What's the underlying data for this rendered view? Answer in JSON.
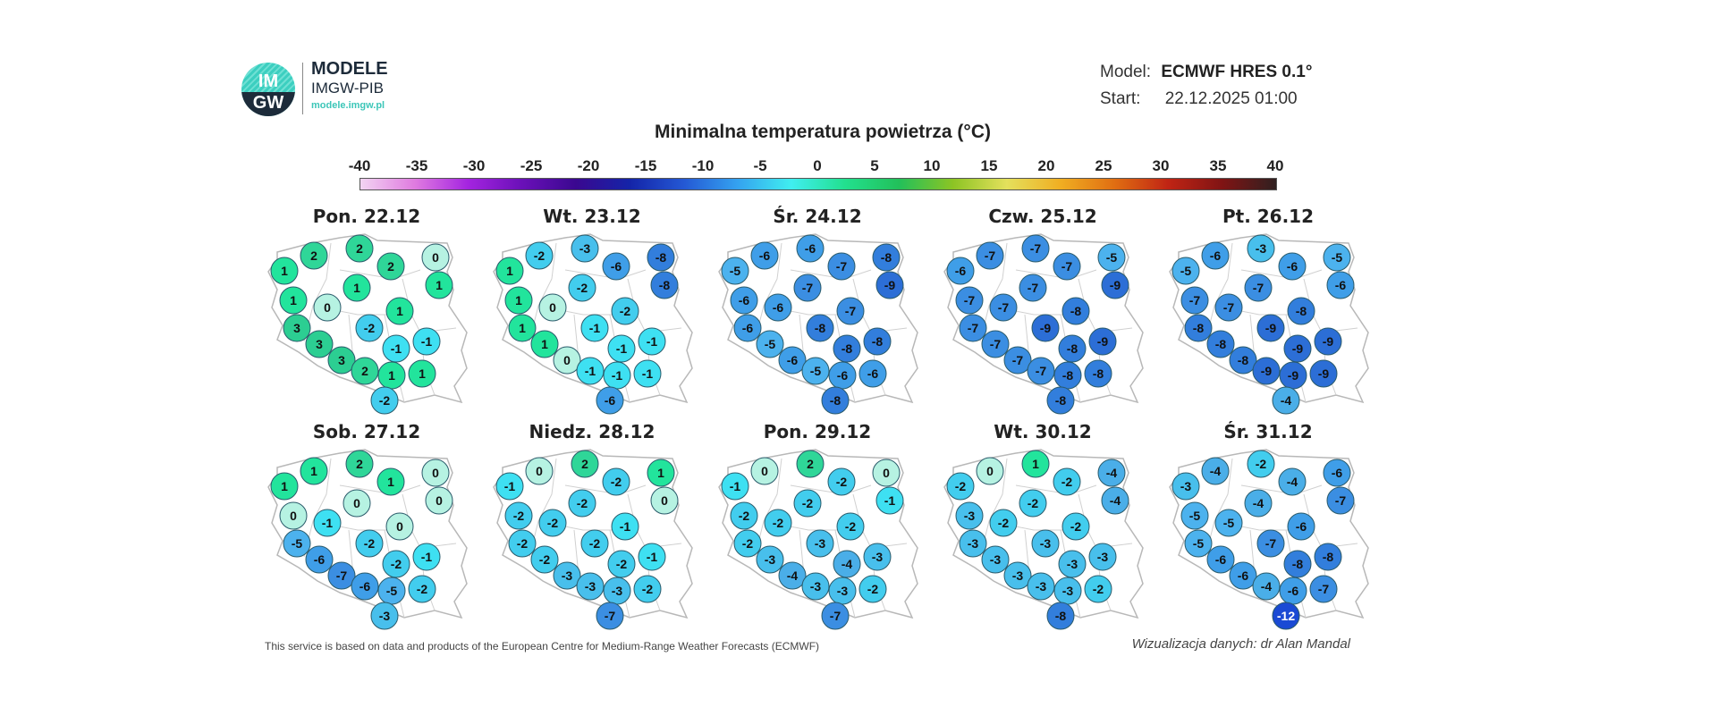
{
  "header": {
    "logo_text_top": "IM",
    "logo_text_bottom": "GW",
    "brand_title": "MODELE",
    "brand_subtitle": "IMGW-PIB",
    "brand_url": "modele.imgw.pl",
    "model_label": "Model:",
    "model_value": "ECMWF HRES 0.1°",
    "start_label": "Start:",
    "start_value": "22.12.2025 01:00"
  },
  "footer": {
    "source_note": "This service is based on data and products of the European Centre for Medium-Range Weather Forecasts (ECMWF)",
    "credit": "Wizualizacja danych: dr Alan Mandal"
  },
  "chart_data": {
    "type": "map",
    "title": "Minimalna temperatura powietrza (°C)",
    "colorbar": {
      "ticks": [
        -40,
        -35,
        -30,
        -25,
        -20,
        -15,
        -10,
        -5,
        0,
        5,
        10,
        15,
        20,
        25,
        30,
        35,
        40
      ],
      "range": [
        -40,
        40
      ],
      "colors": [
        "#f2d4f2",
        "#e07ce0",
        "#a424e0",
        "#6a10b8",
        "#3a0890",
        "#1424a8",
        "#2458d4",
        "#34a2f0",
        "#40eef0",
        "#22e08e",
        "#22c05a",
        "#8cc424",
        "#e4e05c",
        "#f0ae22",
        "#e06e12",
        "#c02414",
        "#801414",
        "#302020"
      ]
    },
    "days": [
      {
        "label": "Pon. 22.12",
        "values": [
          1,
          2,
          2,
          2,
          0,
          1,
          1,
          1,
          0,
          1,
          -2,
          3,
          -1,
          -1,
          3,
          3,
          2,
          1,
          1,
          -2
        ]
      },
      {
        "label": "Wt. 23.12",
        "values": [
          1,
          -2,
          -3,
          -6,
          -8,
          -8,
          -2,
          1,
          0,
          -2,
          -1,
          1,
          -1,
          -1,
          1,
          0,
          -1,
          -1,
          -1,
          -6
        ]
      },
      {
        "label": "Śr. 24.12",
        "values": [
          -5,
          -6,
          -6,
          -7,
          -8,
          -9,
          -7,
          -6,
          -6,
          -7,
          -8,
          -6,
          -8,
          -8,
          -5,
          -6,
          -5,
          -6,
          -6,
          -8
        ]
      },
      {
        "label": "Czw. 25.12",
        "values": [
          -6,
          -7,
          -7,
          -7,
          -5,
          -9,
          -7,
          -7,
          -7,
          -8,
          -9,
          -7,
          -8,
          -9,
          -7,
          -7,
          -7,
          -8,
          -8,
          -8
        ]
      },
      {
        "label": "Pt. 26.12",
        "values": [
          -5,
          -6,
          -3,
          -6,
          -5,
          -6,
          -7,
          -7,
          -7,
          -8,
          -9,
          -8,
          -9,
          -9,
          -8,
          -8,
          -9,
          -9,
          -9,
          -4
        ]
      },
      {
        "label": "Sob. 27.12",
        "values": [
          1,
          1,
          2,
          1,
          0,
          0,
          0,
          0,
          -1,
          0,
          -2,
          -5,
          -2,
          -1,
          -6,
          -7,
          -6,
          -5,
          -2,
          -3
        ]
      },
      {
        "label": "Niedz. 28.12",
        "values": [
          -1,
          0,
          2,
          -2,
          1,
          0,
          -2,
          -2,
          -2,
          -1,
          -2,
          -2,
          -2,
          -1,
          -2,
          -3,
          -3,
          -3,
          -2,
          -7
        ]
      },
      {
        "label": "Pon. 29.12",
        "values": [
          -1,
          0,
          2,
          -2,
          0,
          -1,
          -2,
          -2,
          -2,
          -2,
          -3,
          -2,
          -4,
          -3,
          -3,
          -4,
          -3,
          -3,
          -2,
          -7
        ]
      },
      {
        "label": "Wt. 30.12",
        "values": [
          -2,
          0,
          1,
          -2,
          -4,
          -4,
          -2,
          -3,
          -2,
          -2,
          -3,
          -3,
          -3,
          -3,
          -3,
          -3,
          -3,
          -3,
          -2,
          -8
        ]
      },
      {
        "label": "Śr. 31.12",
        "values": [
          -3,
          -4,
          -2,
          -4,
          -6,
          -7,
          -4,
          -5,
          -5,
          -6,
          -7,
          -5,
          -8,
          -8,
          -6,
          -6,
          -4,
          -6,
          -7,
          -12
        ]
      }
    ]
  }
}
